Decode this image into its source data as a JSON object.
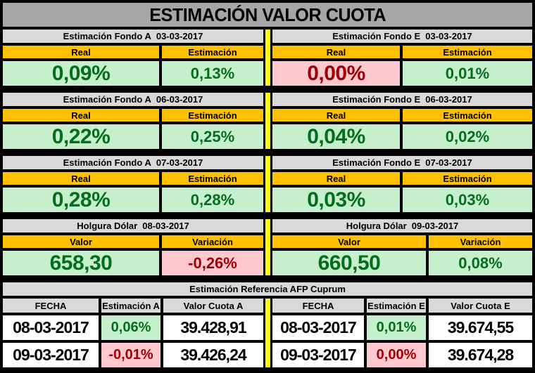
{
  "title": "ESTIMACIÓN VALOR CUOTA",
  "colors": {
    "title_bar": "#A6A6A6",
    "section_header": "#D9D9D9",
    "column_header": "#FFC000",
    "good_bg": "#C6EFCE",
    "good_text": "#056E1E",
    "bad_bg": "#FFC7CE",
    "bad_text": "#9C0006",
    "divider": "#FFFF00",
    "border": "#000000"
  },
  "sections": [
    {
      "left": {
        "title": "Estimación Fondo A",
        "date": "03-03-2017",
        "col1": "Real",
        "col2": "Estimación",
        "v1": "0,09%",
        "v1_state": "good",
        "v2": "0,13%",
        "v2_state": "good"
      },
      "right": {
        "title": "Estimación Fondo E",
        "date": "03-03-2017",
        "col1": "Real",
        "col2": "Estimación",
        "v1": "0,00%",
        "v1_state": "bad",
        "v2": "0,01%",
        "v2_state": "good"
      }
    },
    {
      "left": {
        "title": "Estimación Fondo A",
        "date": "06-03-2017",
        "col1": "Real",
        "col2": "Estimación",
        "v1": "0,22%",
        "v1_state": "good",
        "v2": "0,25%",
        "v2_state": "good"
      },
      "right": {
        "title": "Estimación Fondo E",
        "date": "06-03-2017",
        "col1": "Real",
        "col2": "Estimación",
        "v1": "0,04%",
        "v1_state": "good",
        "v2": "0,02%",
        "v2_state": "good"
      }
    },
    {
      "left": {
        "title": "Estimación Fondo A",
        "date": "07-03-2017",
        "col1": "Real",
        "col2": "Estimación",
        "v1": "0,28%",
        "v1_state": "good",
        "v2": "0,28%",
        "v2_state": "good"
      },
      "right": {
        "title": "Estimación Fondo E",
        "date": "07-03-2017",
        "col1": "Real",
        "col2": "Estimación",
        "v1": "0,03%",
        "v1_state": "good",
        "v2": "0,03%",
        "v2_state": "good"
      }
    },
    {
      "left": {
        "title": "Holgura Dólar",
        "date": "08-03-2017",
        "col1": "Valor",
        "col2": "Variación",
        "v1": "658,30",
        "v1_state": "good",
        "v2": "-0,26%",
        "v2_state": "bad"
      },
      "right": {
        "title": "Holgura Dólar",
        "date": "09-03-2017",
        "col1": "Valor",
        "col2": "Variación",
        "v1": "660,50",
        "v1_state": "good",
        "v2": "0,08%",
        "v2_state": "good"
      }
    }
  ],
  "reference": {
    "title": "Estimación Referencia AFP Cuprum",
    "left": {
      "headers": [
        "FECHA",
        "Estimación A",
        "Valor Cuota A"
      ],
      "rows": [
        {
          "fecha": "08-03-2017",
          "est": "0,06%",
          "est_state": "good",
          "valor": "39.428,91"
        },
        {
          "fecha": "09-03-2017",
          "est": "-0,01%",
          "est_state": "bad",
          "valor": "39.426,24"
        }
      ]
    },
    "right": {
      "headers": [
        "FECHA",
        "Estimación E",
        "Valor Cuota E"
      ],
      "rows": [
        {
          "fecha": "08-03-2017",
          "est": "0,01%",
          "est_state": "good",
          "valor": "39.674,55"
        },
        {
          "fecha": "09-03-2017",
          "est": "0,00%",
          "est_state": "bad",
          "valor": "39.674,28"
        }
      ]
    }
  }
}
